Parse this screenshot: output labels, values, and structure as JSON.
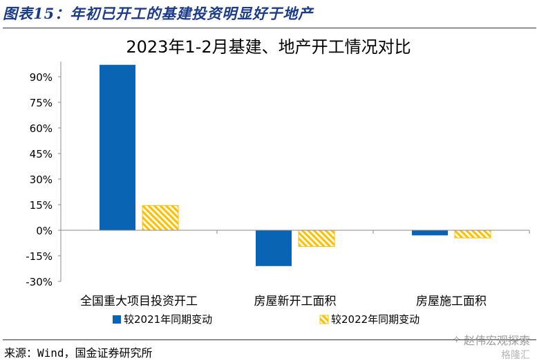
{
  "figure": {
    "title": "图表15：年初已开工的基建投资明显好于地产",
    "source": "来源：Wind，国金证券研究所"
  },
  "watermark": {
    "icon": "wechat-icon",
    "text": "赵伟宏观探索",
    "text2": "格隆汇"
  },
  "chart_data": {
    "type": "bar",
    "title": "2023年1-2月基建、地产开工情况对比",
    "categories": [
      "全国重大项目投资开工",
      "房屋新开工面积",
      "房屋施工面积"
    ],
    "series": [
      {
        "name": "较2021年同期变动",
        "values": [
          97,
          -21,
          -3
        ],
        "color": "#0a64b4",
        "pattern": "solid"
      },
      {
        "name": "较2022年同期变动",
        "values": [
          14.5,
          -9.5,
          -4.5
        ],
        "color": "#ffc000",
        "pattern": "diagonal-hatch"
      }
    ],
    "yticks": [
      "90%",
      "75%",
      "60%",
      "45%",
      "30%",
      "15%",
      "0%",
      "-15%",
      "-30%"
    ],
    "ylim": [
      -30,
      98
    ],
    "legend_position": "bottom",
    "grid": false
  }
}
